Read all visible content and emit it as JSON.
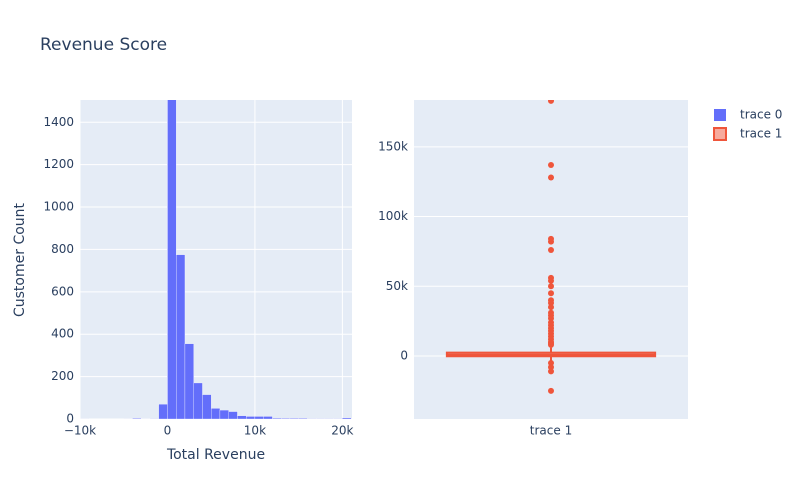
{
  "chart_data": [
    {
      "type": "histogram",
      "title": "Revenue Score",
      "name": "trace 0",
      "color": "#636efa",
      "x_label": "Total Revenue",
      "y_label": "Customer Count",
      "bins": [
        -10000,
        -9000,
        -8000,
        -7000,
        -6000,
        -5000,
        -4000,
        -3000,
        -2000,
        -1000,
        0,
        1000,
        2000,
        3000,
        4000,
        5000,
        6000,
        7000,
        8000,
        9000,
        10000,
        11000,
        12000,
        13000,
        14000,
        15000,
        16000,
        17000,
        18000,
        19000,
        20000,
        21000
      ],
      "counts": [
        1,
        0,
        0,
        0,
        0,
        1,
        3,
        1,
        2,
        70,
        1550,
        775,
        355,
        170,
        115,
        50,
        42,
        35,
        15,
        12,
        12,
        12,
        4,
        3,
        3,
        3,
        2,
        2,
        2,
        2,
        5
      ],
      "xlim": [
        -10000,
        21100
      ],
      "xticks": [
        {
          "value": -10000,
          "label": "−10k"
        },
        0,
        {
          "value": 10000,
          "label": "10k"
        },
        {
          "value": 20000,
          "label": "20k"
        }
      ],
      "ylim": [
        0,
        1505
      ],
      "yticks": [
        0,
        200,
        400,
        600,
        800,
        1000,
        1200,
        1400
      ],
      "grid": true
    },
    {
      "type": "box",
      "name": "trace 1",
      "color": "#ef553b",
      "categories": [
        "trace 1"
      ],
      "q1": -200,
      "median": 900,
      "q3": 2400,
      "lowerfence": -4000,
      "upperfence": 6000,
      "outliers": [
        183000,
        137000,
        128000,
        84000,
        82000,
        76000,
        56000,
        54000,
        50000,
        45000,
        40000,
        38000,
        35000,
        31000,
        29000,
        27000,
        24000,
        22000,
        20000,
        18000,
        16000,
        14000,
        12000,
        10000,
        9000,
        8000,
        -5000,
        -8000,
        -11000,
        -25000
      ],
      "ylim": [
        -45200,
        183600
      ],
      "yticks": [
        0,
        {
          "value": 50000,
          "label": "50k"
        },
        {
          "value": 100000,
          "label": "100k"
        },
        {
          "value": 150000,
          "label": "150k"
        }
      ],
      "grid": true
    }
  ]
}
